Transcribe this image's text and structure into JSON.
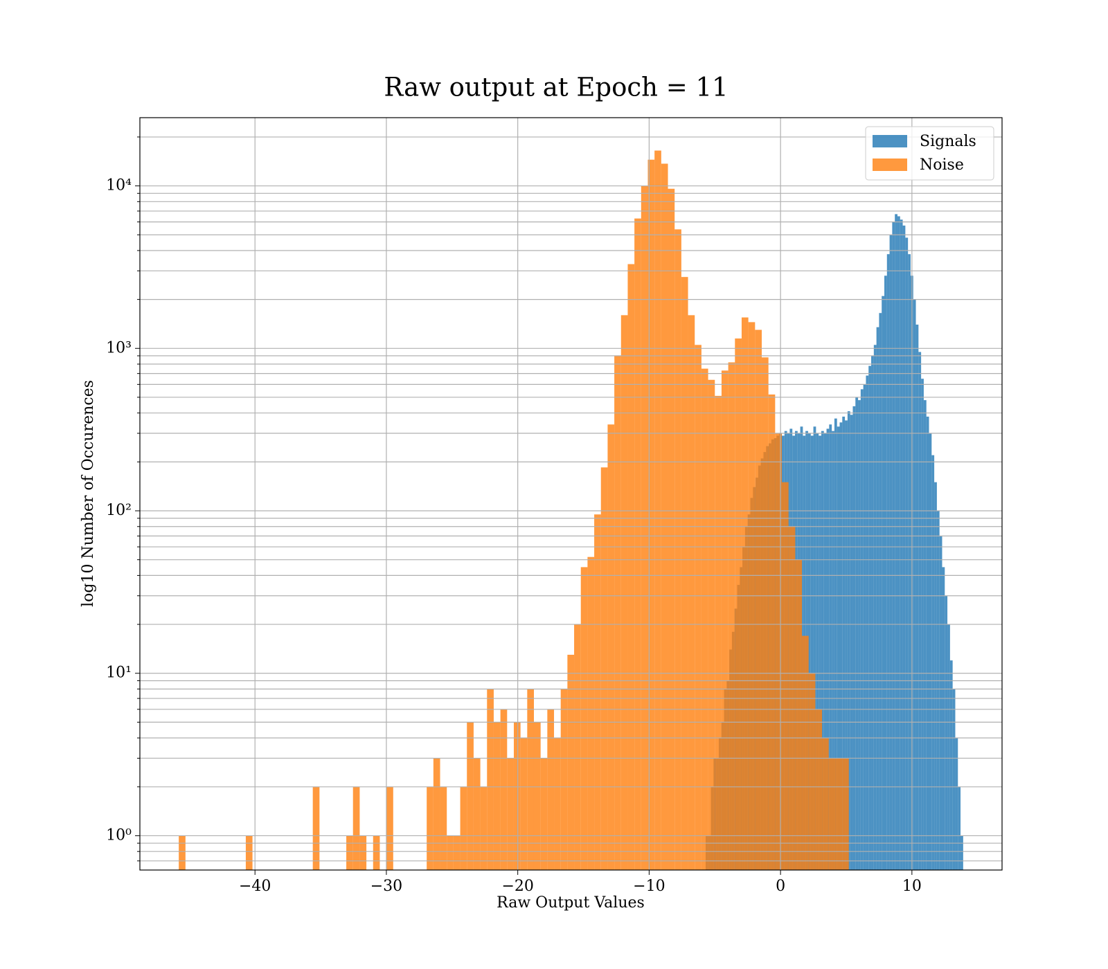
{
  "chart_data": {
    "type": "histogram",
    "title": "Raw output at Epoch = 11",
    "xlabel": "Raw Output Values",
    "ylabel": "log10 Number of Occurences",
    "log_y": true,
    "grid": true,
    "legend": "upper right",
    "alpha": 0.8,
    "xlim": [
      -48.76,
      16.86
    ],
    "ylim": [
      0.615,
      26300
    ],
    "xticks": [
      {
        "value": -40,
        "label": "−40"
      },
      {
        "value": -30,
        "label": "−30"
      },
      {
        "value": -20,
        "label": "−20"
      },
      {
        "value": -10,
        "label": "−10"
      },
      0,
      10
    ],
    "yticks": [
      {
        "value": 1,
        "label": "10⁰"
      },
      {
        "value": 10,
        "label": "10¹"
      },
      {
        "value": 100,
        "label": "10²"
      },
      {
        "value": 1000,
        "label": "10³"
      },
      {
        "value": 10000,
        "label": "10⁴"
      }
    ],
    "yminor": [
      0.7,
      0.8,
      0.9,
      2,
      3,
      4,
      5,
      6,
      7,
      8,
      9,
      20,
      30,
      40,
      50,
      60,
      70,
      80,
      90,
      200,
      300,
      400,
      500,
      600,
      700,
      800,
      900,
      2000,
      3000,
      4000,
      5000,
      6000,
      7000,
      8000,
      9000,
      20000
    ],
    "series": [
      {
        "name": "Signals",
        "color": "#1f77b4",
        "bins": [
          -5.7,
          -5.5,
          -5.3,
          -5.1,
          -4.9,
          -4.7,
          -4.5,
          -4.3,
          -4.1,
          -3.9,
          -3.7,
          -3.5,
          -3.3,
          -3.1,
          -2.9,
          -2.7,
          -2.5,
          -2.3,
          -2.1,
          -1.9,
          -1.7,
          -1.5,
          -1.3,
          -1.1,
          -0.9,
          -0.7,
          -0.5,
          -0.3,
          -0.1,
          0.1,
          0.3,
          0.5,
          0.7,
          0.9,
          1.1,
          1.3,
          1.5,
          1.7,
          1.9,
          2.1,
          2.3,
          2.5,
          2.7,
          2.9,
          3.1,
          3.3,
          3.5,
          3.7,
          3.9,
          4.1,
          4.3,
          4.5,
          4.7,
          4.9,
          5.1,
          5.3,
          5.5,
          5.7,
          5.9,
          6.1,
          6.3,
          6.5,
          6.7,
          6.9,
          7.1,
          7.3,
          7.5,
          7.7,
          7.9,
          8.1,
          8.3,
          8.5,
          8.7,
          8.9,
          9.1,
          9.3,
          9.5,
          9.7,
          9.9,
          10.1,
          10.3,
          10.5,
          10.7,
          10.9,
          11.1,
          11.3,
          11.5,
          11.7,
          11.9,
          12.1,
          12.3,
          12.5,
          12.7,
          12.9,
          13.1,
          13.3,
          13.5,
          13.7,
          13.9
        ],
        "values": [
          1,
          1,
          2,
          3,
          3,
          4,
          5,
          8,
          9,
          14,
          18,
          25,
          35,
          45,
          60,
          80,
          95,
          120,
          140,
          160,
          190,
          210,
          230,
          250,
          260,
          275,
          280,
          290,
          300,
          290,
          310,
          300,
          320,
          290,
          310,
          300,
          330,
          290,
          310,
          300,
          290,
          330,
          300,
          290,
          310,
          300,
          320,
          340,
          310,
          370,
          330,
          350,
          380,
          360,
          410,
          390,
          440,
          500,
          480,
          560,
          600,
          680,
          780,
          900,
          1050,
          1350,
          1650,
          2100,
          2800,
          3800,
          5000,
          6000,
          6700,
          6500,
          6200,
          5700,
          4800,
          3800,
          2800,
          2000,
          1400,
          950,
          650,
          480,
          380,
          300,
          220,
          150,
          100,
          70,
          45,
          30,
          20,
          12,
          8,
          4,
          2,
          1
        ]
      },
      {
        "name": "Noise",
        "color": "#ff7f0e",
        "bins": [
          -45.8,
          -45.29,
          -44.78,
          -44.27,
          -43.76,
          -43.25,
          -42.74,
          -42.23,
          -41.72,
          -41.21,
          -40.7,
          -40.19,
          -39.68,
          -39.17,
          -38.66,
          -38.15,
          -37.64,
          -37.13,
          -36.62,
          -36.11,
          -35.6,
          -35.09,
          -34.58,
          -34.07,
          -33.56,
          -33.05,
          -32.54,
          -32.03,
          -31.52,
          -31.01,
          -30.5,
          -29.99,
          -29.48,
          -28.97,
          -28.46,
          -27.95,
          -27.44,
          -26.93,
          -26.42,
          -25.91,
          -25.4,
          -24.89,
          -24.38,
          -23.87,
          -23.36,
          -22.85,
          -22.34,
          -21.83,
          -21.32,
          -20.81,
          -20.3,
          -19.79,
          -19.28,
          -18.77,
          -18.26,
          -17.75,
          -17.24,
          -16.73,
          -16.22,
          -15.71,
          -15.2,
          -14.69,
          -14.18,
          -13.67,
          -13.16,
          -12.65,
          -12.14,
          -11.63,
          -11.12,
          -10.61,
          -10.1,
          -9.59,
          -9.08,
          -8.57,
          -8.06,
          -7.55,
          -7.04,
          -6.53,
          -6.02,
          -5.51,
          -5.0,
          -4.49,
          -3.98,
          -3.47,
          -2.96,
          -2.45,
          -1.94,
          -1.43,
          -0.92,
          -0.41,
          0.1,
          0.61,
          1.12,
          1.63,
          2.14,
          2.65,
          3.16,
          3.67,
          4.18,
          4.69,
          5.2
        ],
        "values": [
          1,
          0,
          0,
          0,
          0,
          0,
          0,
          0,
          0,
          0,
          1,
          0,
          0,
          0,
          0,
          0,
          0,
          0,
          0,
          0,
          2,
          0,
          0,
          0,
          0,
          1,
          2,
          1,
          0,
          1,
          0,
          2,
          0,
          0,
          0,
          0,
          0,
          2,
          3,
          2,
          1,
          1,
          2,
          5,
          3,
          2,
          8,
          5,
          6,
          3,
          5,
          4,
          8,
          5,
          3,
          6,
          4,
          8,
          13,
          20,
          45,
          52,
          95,
          185,
          340,
          900,
          1600,
          3300,
          6300,
          10000,
          14500,
          16500,
          13700,
          9600,
          5400,
          2750,
          1600,
          1050,
          750,
          640,
          510,
          730,
          820,
          1150,
          1550,
          1450,
          1300,
          880,
          520,
          300,
          150,
          80,
          50,
          17,
          10,
          6,
          4,
          3,
          3,
          3
        ]
      }
    ]
  }
}
